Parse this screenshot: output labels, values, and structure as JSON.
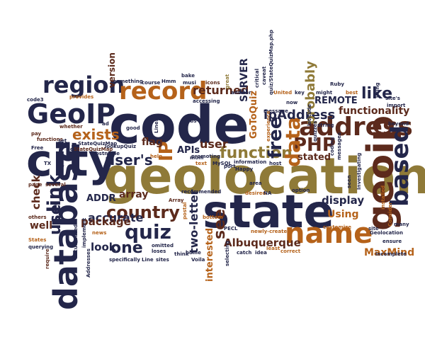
{
  "colors": {
    "navy": "#23264a",
    "brown": "#5c2a1c",
    "orange": "#b5621a",
    "gold": "#8f7a38",
    "olive": "#8a8a4a"
  },
  "words": [
    {
      "text": "geolocation",
      "color": "#8f7a38"
    },
    {
      "text": "code",
      "color": "#23264a"
    },
    {
      "text": "state",
      "color": "#23264a"
    },
    {
      "text": "city",
      "color": "#23264a"
    },
    {
      "text": "geoip",
      "color": "#5c2a1c"
    },
    {
      "text": "database",
      "color": "#23264a"
    },
    {
      "text": "GeoIP",
      "color": "#23264a"
    },
    {
      "text": "region",
      "color": "#23264a"
    },
    {
      "text": "record",
      "color": "#b5621a"
    },
    {
      "text": "name",
      "color": "#b5621a"
    },
    {
      "text": "address",
      "color": "#5c2a1c"
    },
    {
      "text": "based",
      "color": "#23264a"
    },
    {
      "text": "country",
      "color": "#5c2a1c"
    },
    {
      "text": "quiz",
      "color": "#23264a"
    },
    {
      "text": "link",
      "color": "#23264a"
    },
    {
      "text": "exists",
      "color": "#b5621a"
    },
    {
      "text": "PHP",
      "color": "#5c2a1c"
    },
    {
      "text": "function",
      "color": "#8f7a38"
    },
    {
      "text": "user's",
      "color": "#23264a"
    },
    {
      "text": "IP",
      "color": "#b5621a"
    },
    {
      "text": "data",
      "color": "#b5621a"
    },
    {
      "text": "free",
      "color": "#23264a"
    },
    {
      "text": "like",
      "color": "#23264a"
    },
    {
      "text": "ipAddress",
      "color": "#23264a"
    },
    {
      "text": "functionality",
      "color": "#5c2a1c"
    },
    {
      "text": "probably",
      "color": "#8f7a38"
    },
    {
      "text": "returned",
      "color": "#5c2a1c"
    },
    {
      "text": "Albuquerque",
      "color": "#5c2a1c"
    },
    {
      "text": "MaxMind",
      "color": "#b5621a"
    },
    {
      "text": "display",
      "color": "#23264a"
    },
    {
      "text": "use",
      "color": "#23264a"
    },
    {
      "text": "one",
      "color": "#23264a"
    },
    {
      "text": "accurate",
      "color": "#23264a"
    },
    {
      "text": "package",
      "color": "#5c2a1c"
    },
    {
      "text": "check",
      "color": "#5c2a1c"
    },
    {
      "text": "well",
      "color": "#5c2a1c"
    },
    {
      "text": "look",
      "color": "#23264a"
    },
    {
      "text": "see",
      "color": "#5c2a1c"
    },
    {
      "text": "interested",
      "color": "#b5621a"
    },
    {
      "text": "two-letter",
      "color": "#23264a"
    },
    {
      "text": "array",
      "color": "#5c2a1c"
    },
    {
      "text": "APIs",
      "color": "#23264a"
    },
    {
      "text": "user",
      "color": "#5c2a1c"
    },
    {
      "text": "flag",
      "color": "#5c2a1c"
    },
    {
      "text": "version",
      "color": "#5c2a1c"
    },
    {
      "text": "REMOTE",
      "color": "#23264a"
    },
    {
      "text": "stated",
      "color": "#5c2a1c"
    },
    {
      "text": "Using",
      "color": "#b5621a"
    },
    {
      "text": "SERVER",
      "color": "#23264a"
    },
    {
      "text": "GoToQuiz",
      "color": "#b5621a"
    },
    {
      "text": "ADDR",
      "color": "#23264a"
    },
    {
      "text": "record",
      "color": "#8f7a38"
    },
    {
      "text": "something",
      "color": "#23264a"
    },
    {
      "text": "course",
      "color": "#23264a"
    },
    {
      "text": "Hmm",
      "color": "#23264a"
    },
    {
      "text": "bake",
      "color": "#23264a"
    },
    {
      "text": "icons",
      "color": "#5c2a1c"
    },
    {
      "text": "great",
      "color": "#8f7a38"
    },
    {
      "text": "provides",
      "color": "#b5621a"
    },
    {
      "text": "code3",
      "color": "#23264a"
    },
    {
      "text": "whether",
      "color": "#5c2a1c"
    },
    {
      "text": "pay",
      "color": "#5c2a1c"
    },
    {
      "text": "functions",
      "color": "#5c2a1c"
    },
    {
      "text": "set",
      "color": "#23264a"
    },
    {
      "text": "got",
      "color": "#23264a"
    },
    {
      "text": "StateQuizMap",
      "color": "#5c2a1c"
    },
    {
      "text": "Free",
      "color": "#23264a"
    },
    {
      "text": "TX",
      "color": "#23264a"
    },
    {
      "text": "page",
      "color": "#5c2a1c"
    },
    {
      "text": "several",
      "color": "#5c2a1c"
    },
    {
      "text": "others",
      "color": "#5c2a1c"
    },
    {
      "text": "States",
      "color": "#b5621a"
    },
    {
      "text": "querying",
      "color": "#23264a"
    },
    {
      "text": "require",
      "color": "#5c2a1c"
    },
    {
      "text": "documented",
      "color": "#23264a"
    },
    {
      "text": "implement",
      "color": "#23264a"
    },
    {
      "text": "news",
      "color": "#b5621a"
    },
    {
      "text": "Addresses",
      "color": "#23264a"
    },
    {
      "text": "specifically",
      "color": "#23264a"
    },
    {
      "text": "omitted",
      "color": "#23264a"
    },
    {
      "text": "loses",
      "color": "#23264a"
    },
    {
      "text": "Line",
      "color": "#23264a"
    },
    {
      "text": "sites",
      "color": "#23264a"
    },
    {
      "text": "think",
      "color": "#23264a"
    },
    {
      "text": "home",
      "color": "#23264a"
    },
    {
      "text": "Voila",
      "color": "#23264a"
    },
    {
      "text": "PECL",
      "color": "#23264a"
    },
    {
      "text": "newly-created",
      "color": "#b5621a"
    },
    {
      "text": "selecting",
      "color": "#23264a"
    },
    {
      "text": "catch",
      "color": "#23264a"
    },
    {
      "text": "idea",
      "color": "#23264a"
    },
    {
      "text": "least",
      "color": "#b5621a"
    },
    {
      "text": "correct",
      "color": "#b5621a"
    },
    {
      "text": "customize",
      "color": "#b5621a"
    },
    {
      "text": "site",
      "color": "#23264a"
    },
    {
      "text": "Geolocation",
      "color": "#23264a"
    },
    {
      "text": "ensure",
      "color": "#23264a"
    },
    {
      "text": "incomplete",
      "color": "#23264a"
    },
    {
      "text": "many",
      "color": "#23264a"
    },
    {
      "text": "Consider",
      "color": "#b5621a"
    },
    {
      "text": "installed",
      "color": "#b5621a"
    },
    {
      "text": "option",
      "color": "#23264a"
    },
    {
      "text": "seen",
      "color": "#23264a"
    },
    {
      "text": "Investigating",
      "color": "#23264a"
    },
    {
      "text": "host",
      "color": "#23264a"
    },
    {
      "text": "information",
      "color": "#23264a"
    },
    {
      "text": "text",
      "color": "#b5621a"
    },
    {
      "text": "promoting",
      "color": "#23264a"
    },
    {
      "text": "MySQL",
      "color": "#23264a"
    },
    {
      "text": "recommended",
      "color": "#23264a"
    },
    {
      "text": "postal",
      "color": "#b5621a"
    },
    {
      "text": "bottom",
      "color": "#b5621a"
    },
    {
      "text": "Array",
      "color": "#5c2a1c"
    },
    {
      "text": "hostname",
      "color": "#23264a"
    },
    {
      "text": "StateQuizMap",
      "color": "#23264a"
    },
    {
      "text": "lookupQuiz",
      "color": "#23264a"
    },
    {
      "text": "help",
      "color": "#b5621a"
    },
    {
      "text": "ad",
      "color": "#23264a"
    },
    {
      "text": "good",
      "color": "#23264a"
    },
    {
      "text": "Lines",
      "color": "#23264a"
    },
    {
      "text": "lbs",
      "color": "#23264a"
    },
    {
      "text": "mom",
      "color": "#23264a"
    },
    {
      "text": "port",
      "color": "#23264a"
    },
    {
      "text": "Happy",
      "color": "#23264a"
    },
    {
      "text": "area",
      "color": "#23264a"
    },
    {
      "text": "desired",
      "color": "#b5621a"
    },
    {
      "text": "NA",
      "color": "#23264a"
    },
    {
      "text": "accessing",
      "color": "#23264a"
    },
    {
      "text": "answer",
      "color": "#23264a"
    },
    {
      "text": "critical",
      "color": "#23264a"
    },
    {
      "text": "caveat",
      "color": "#23264a"
    },
    {
      "text": "quiz/StateQuizMap.php",
      "color": "#23264a"
    },
    {
      "text": "United",
      "color": "#b5621a"
    },
    {
      "text": "key",
      "color": "#23264a"
    },
    {
      "text": "message",
      "color": "#23264a"
    },
    {
      "text": "now",
      "color": "#23264a"
    },
    {
      "text": "experience",
      "color": "#b5621a"
    },
    {
      "text": "latitude",
      "color": "#23264a"
    },
    {
      "text": "quizzes",
      "color": "#23264a"
    },
    {
      "text": "string",
      "color": "#23264a"
    },
    {
      "text": "might",
      "color": "#23264a"
    },
    {
      "text": "Ruby",
      "color": "#23264a"
    },
    {
      "text": "best",
      "color": "#b5621a"
    },
    {
      "text": "using",
      "color": "#23264a"
    },
    {
      "text": "site's",
      "color": "#23264a"
    },
    {
      "text": "import",
      "color": "#23264a"
    },
    {
      "text": "beyond",
      "color": "#23264a"
    },
    {
      "text": "coding",
      "color": "#23264a"
    },
    {
      "text": "messages",
      "color": "#23264a"
    },
    {
      "text": "musi",
      "color": "#23264a"
    }
  ]
}
